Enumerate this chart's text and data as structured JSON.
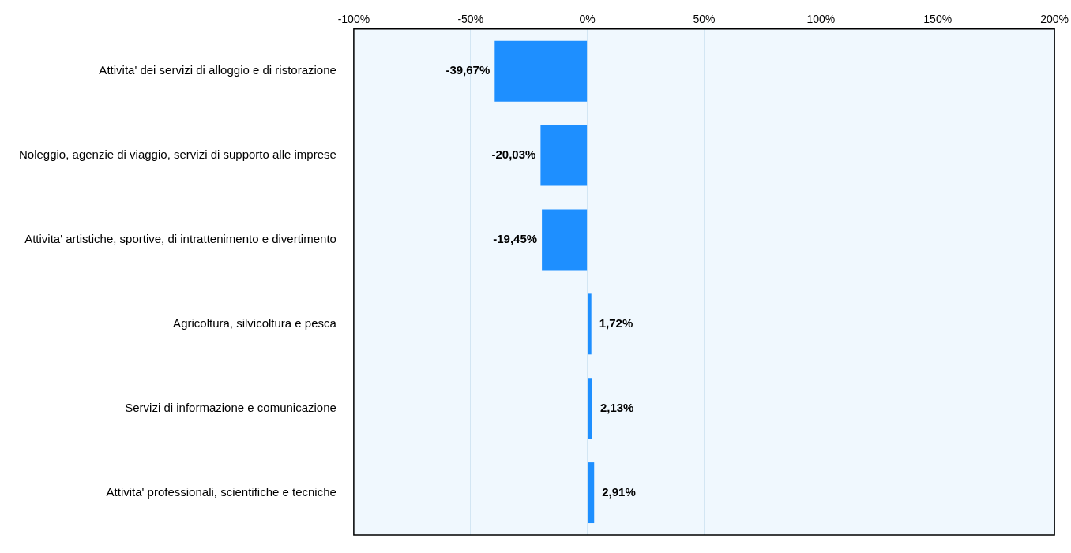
{
  "chart_data": {
    "type": "bar",
    "orientation": "horizontal",
    "categories": [
      "Attivita' dei servizi di alloggio e di ristorazione",
      "Noleggio, agenzie di viaggio, servizi di supporto alle imprese",
      "Attivita' artistiche, sportive, di intrattenimento e divertimento",
      "Agricoltura, silvicoltura e pesca",
      "Servizi di informazione e comunicazione",
      "Attivita' professionali, scientifiche e tecniche"
    ],
    "values": [
      -39.67,
      -20.03,
      -19.45,
      1.72,
      2.13,
      2.91
    ],
    "value_labels": [
      "-39,67%",
      "-20,03%",
      "-19,45%",
      "1,72%",
      "2,13%",
      "2,91%"
    ],
    "color": "#1e8fff",
    "xlim": [
      -100,
      200
    ],
    "xticks": [
      {
        "value": -100,
        "label": "-100%"
      },
      {
        "value": -50,
        "label": "-50%"
      },
      {
        "value": 0,
        "label": "0%"
      },
      {
        "value": 50,
        "label": "50%"
      },
      {
        "value": 100,
        "label": "100%"
      },
      {
        "value": 150,
        "label": "150%"
      },
      {
        "value": 200,
        "label": "200%"
      }
    ],
    "grid": "x",
    "legend": false
  }
}
